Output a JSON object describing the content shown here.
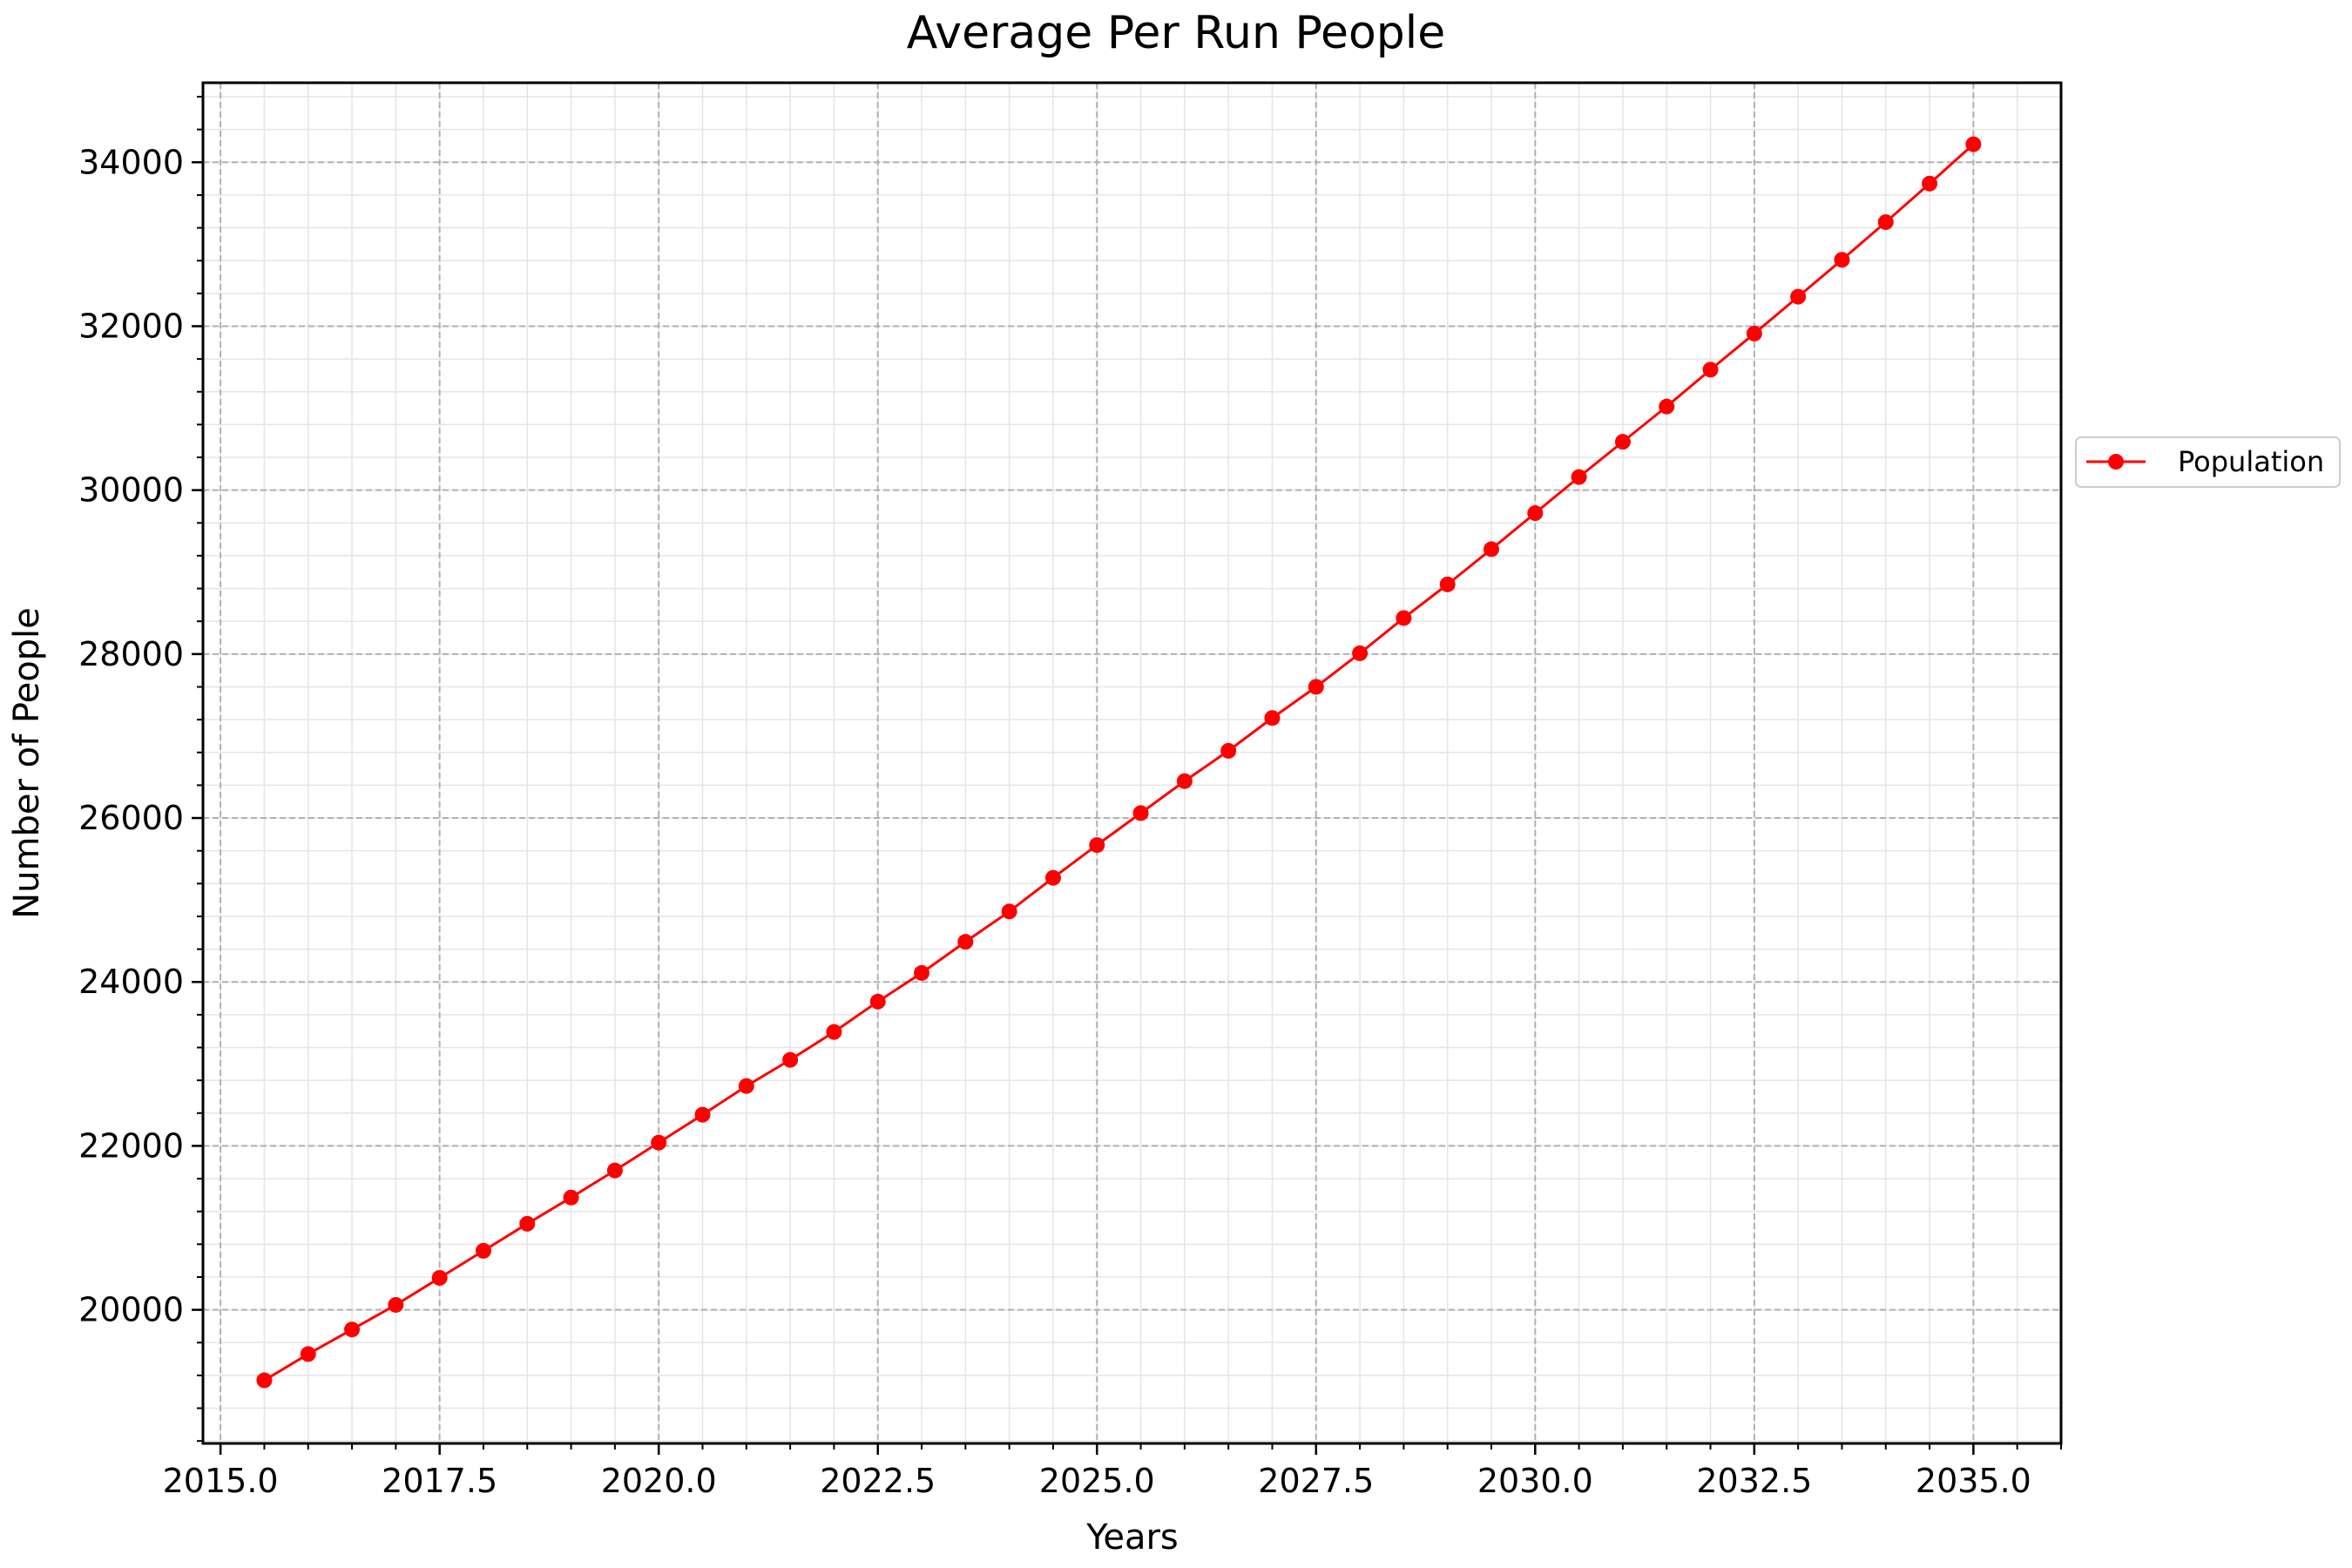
{
  "chart_data": {
    "type": "line",
    "title": "Average Per Run People",
    "xlabel": "Years",
    "ylabel": "Number of People",
    "xlim": [
      2014.8,
      2036.0
    ],
    "ylim": [
      18370,
      34970
    ],
    "x_ticks": [
      2015.0,
      2017.5,
      2020.0,
      2022.5,
      2025.0,
      2027.5,
      2030.0,
      2032.5,
      2035.0
    ],
    "x_tick_labels": [
      "2015.0",
      "2017.5",
      "2020.0",
      "2022.5",
      "2025.0",
      "2027.5",
      "2030.0",
      "2032.5",
      "2035.0"
    ],
    "y_ticks": [
      20000,
      22000,
      24000,
      26000,
      28000,
      30000,
      32000,
      34000
    ],
    "y_tick_labels": [
      "20000",
      "22000",
      "24000",
      "26000",
      "28000",
      "30000",
      "32000",
      "34000"
    ],
    "grid": true,
    "minor_grid": true,
    "legend_position": "outside right",
    "colors": {
      "series": "#ff0000",
      "major_grid": "#b0b0b0",
      "minor_grid": "#e5e5e5"
    },
    "series": [
      {
        "name": "Population",
        "marker": "circle",
        "x": [
          2015.5,
          2016.0,
          2016.5,
          2017.0,
          2017.5,
          2018.0,
          2018.5,
          2019.0,
          2019.5,
          2020.0,
          2020.5,
          2021.0,
          2021.5,
          2022.0,
          2022.5,
          2023.0,
          2023.5,
          2024.0,
          2024.5,
          2025.0,
          2025.5,
          2026.0,
          2026.5,
          2027.0,
          2027.5,
          2028.0,
          2028.5,
          2029.0,
          2029.5,
          2030.0,
          2030.5,
          2031.0,
          2031.5,
          2032.0,
          2032.5,
          2033.0,
          2033.5,
          2034.0,
          2034.5,
          2035.0
        ],
        "y": [
          19140,
          19460,
          19760,
          20060,
          20390,
          20720,
          21050,
          21370,
          21700,
          22040,
          22380,
          22730,
          23050,
          23390,
          23760,
          24110,
          24490,
          24860,
          25270,
          25670,
          26060,
          26450,
          26820,
          27220,
          27600,
          28010,
          28440,
          28850,
          29280,
          29720,
          30160,
          30590,
          31020,
          31470,
          31910,
          32360,
          32810,
          33270,
          33740,
          34220
        ]
      }
    ]
  }
}
